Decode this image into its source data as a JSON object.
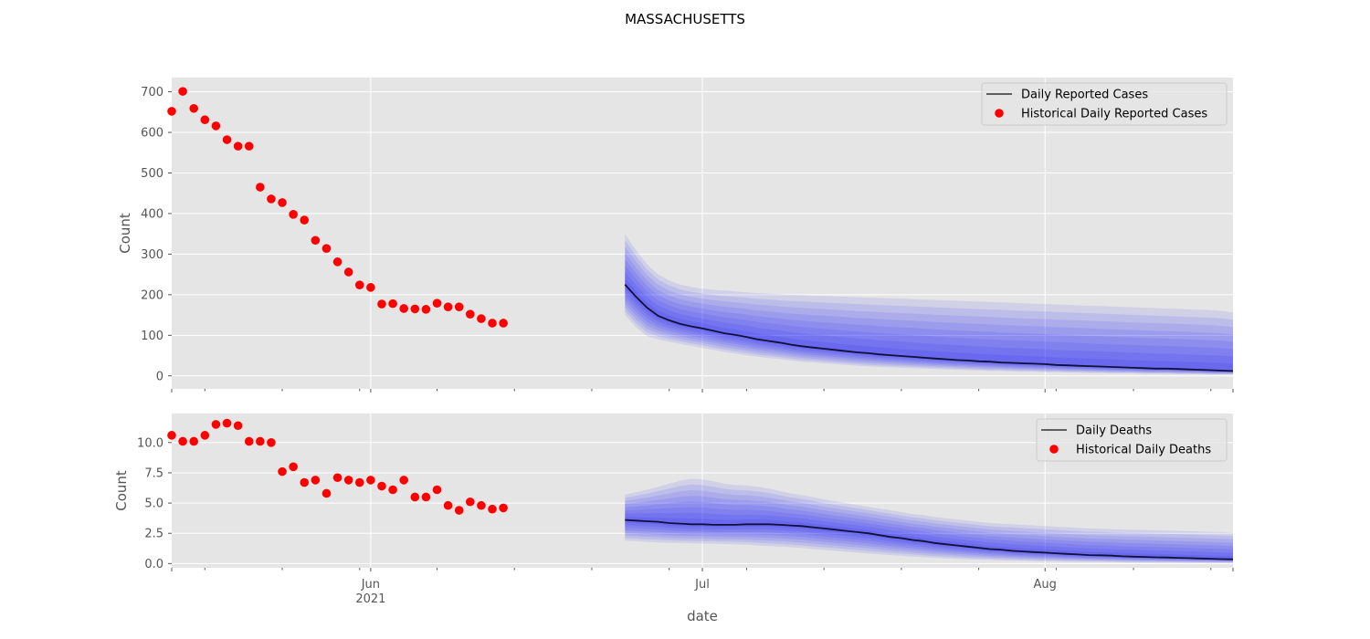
{
  "figure": {
    "title": "MASSACHUSETTS",
    "xlabel": "date"
  },
  "chart_data": [
    {
      "type": "line",
      "panel": "top",
      "ylabel": "Count",
      "ylim": [
        -32,
        735
      ],
      "yticks": [
        0,
        100,
        200,
        300,
        400,
        500,
        600,
        700
      ],
      "ytick_labels": [
        "0",
        "100",
        "200",
        "300",
        "400",
        "500",
        "600",
        "700"
      ],
      "xlim": [
        "2021-05-14",
        "2021-08-18"
      ],
      "grid": true,
      "legend_position": "top-right",
      "legend": {
        "line": "Daily Reported Cases",
        "scatter": "Historical Daily Reported Cases"
      },
      "historical": {
        "x": [
          "2021-05-14",
          "2021-05-15",
          "2021-05-16",
          "2021-05-17",
          "2021-05-18",
          "2021-05-19",
          "2021-05-20",
          "2021-05-21",
          "2021-05-22",
          "2021-05-23",
          "2021-05-24",
          "2021-05-25",
          "2021-05-26",
          "2021-05-27",
          "2021-05-28",
          "2021-05-29",
          "2021-05-30",
          "2021-05-31",
          "2021-06-01",
          "2021-06-02",
          "2021-06-03",
          "2021-06-04",
          "2021-06-05",
          "2021-06-06",
          "2021-06-07",
          "2021-06-08",
          "2021-06-09",
          "2021-06-10",
          "2021-06-11",
          "2021-06-12",
          "2021-06-13"
        ],
        "y": [
          652,
          701,
          659,
          631,
          616,
          582,
          566,
          566,
          465,
          436,
          427,
          398,
          384,
          334,
          314,
          281,
          256,
          224,
          218,
          177,
          178,
          166,
          165,
          164,
          179,
          170,
          170,
          152,
          141,
          130,
          130
        ]
      },
      "forecast": {
        "x": [
          "2021-06-24",
          "2021-06-25",
          "2021-06-26",
          "2021-06-27",
          "2021-06-28",
          "2021-06-29",
          "2021-06-30",
          "2021-07-01",
          "2021-07-02",
          "2021-07-03",
          "2021-07-04",
          "2021-07-05",
          "2021-07-06",
          "2021-07-07",
          "2021-07-08",
          "2021-07-09",
          "2021-07-10",
          "2021-07-11",
          "2021-07-12",
          "2021-07-13",
          "2021-07-14",
          "2021-07-15",
          "2021-07-16",
          "2021-07-17",
          "2021-07-18",
          "2021-07-19",
          "2021-07-20",
          "2021-07-21",
          "2021-07-22",
          "2021-07-23",
          "2021-07-24",
          "2021-07-25",
          "2021-07-26",
          "2021-07-27",
          "2021-07-28",
          "2021-07-29",
          "2021-07-30",
          "2021-07-31",
          "2021-08-01",
          "2021-08-02",
          "2021-08-03",
          "2021-08-04",
          "2021-08-05",
          "2021-08-06",
          "2021-08-07",
          "2021-08-08",
          "2021-08-09",
          "2021-08-10",
          "2021-08-11",
          "2021-08-12",
          "2021-08-13",
          "2021-08-14",
          "2021-08-15",
          "2021-08-16",
          "2021-08-17",
          "2021-08-18"
        ],
        "median": [
          225,
          195,
          168,
          148,
          137,
          128,
          122,
          117,
          111,
          105,
          101,
          96,
          90,
          86,
          82,
          77,
          73,
          70,
          67,
          64,
          61,
          58,
          56,
          53,
          51,
          49,
          47,
          45,
          43,
          41,
          39,
          38,
          36,
          35,
          33,
          32,
          31,
          30,
          29,
          27,
          26,
          25,
          24,
          23,
          22,
          21,
          20,
          19,
          18,
          18,
          17,
          16,
          15,
          14,
          13,
          12
        ],
        "upper": [
          350,
          310,
          275,
          250,
          235,
          225,
          219,
          215,
          212,
          210,
          208,
          206,
          204,
          203,
          201,
          200,
          199,
          198,
          197,
          196,
          195,
          194,
          193,
          192,
          191,
          190,
          189,
          188,
          187,
          186,
          185,
          184,
          183,
          182,
          181,
          180,
          179,
          178,
          177,
          176,
          175,
          174,
          173,
          172,
          171,
          170,
          169,
          168,
          167,
          166,
          165,
          164,
          163,
          162,
          160,
          156
        ],
        "lower": [
          150,
          120,
          98,
          90,
          84,
          79,
          74,
          69,
          64,
          59,
          55,
          51,
          47,
          44,
          41,
          38,
          35,
          33,
          31,
          29,
          27,
          25,
          23,
          22,
          21,
          20,
          19,
          18,
          17,
          16,
          15,
          14,
          13,
          12,
          12,
          11,
          10,
          10,
          9,
          9,
          8,
          8,
          7,
          7,
          6,
          6,
          6,
          5,
          5,
          5,
          4,
          4,
          4,
          3,
          3,
          3
        ]
      }
    },
    {
      "type": "line",
      "panel": "bottom",
      "ylabel": "Count",
      "ylim": [
        -0.35,
        12.4
      ],
      "yticks": [
        0,
        2.5,
        5,
        7.5,
        10
      ],
      "ytick_labels": [
        "0.0",
        "2.5",
        "5.0",
        "7.5",
        "10.0"
      ],
      "xlim": [
        "2021-05-14",
        "2021-08-18"
      ],
      "grid": true,
      "legend_position": "top-right",
      "legend": {
        "line": "Daily Deaths",
        "scatter": "Historical Daily Deaths"
      },
      "historical": {
        "x": [
          "2021-05-14",
          "2021-05-15",
          "2021-05-16",
          "2021-05-17",
          "2021-05-18",
          "2021-05-19",
          "2021-05-20",
          "2021-05-21",
          "2021-05-22",
          "2021-05-23",
          "2021-05-24",
          "2021-05-25",
          "2021-05-26",
          "2021-05-27",
          "2021-05-28",
          "2021-05-29",
          "2021-05-30",
          "2021-05-31",
          "2021-06-01",
          "2021-06-02",
          "2021-06-03",
          "2021-06-04",
          "2021-06-05",
          "2021-06-06",
          "2021-06-07",
          "2021-06-08",
          "2021-06-09",
          "2021-06-10",
          "2021-06-11",
          "2021-06-12",
          "2021-06-13"
        ],
        "y": [
          10.6,
          10.1,
          10.1,
          10.6,
          11.5,
          11.6,
          11.4,
          10.1,
          10.1,
          10.0,
          7.6,
          8.0,
          6.7,
          6.9,
          5.8,
          7.1,
          6.9,
          6.7,
          6.9,
          6.4,
          6.1,
          6.9,
          5.5,
          5.5,
          6.1,
          4.8,
          4.4,
          5.1,
          4.8,
          4.5,
          4.6
        ]
      },
      "forecast": {
        "x": [
          "2021-06-24",
          "2021-06-25",
          "2021-06-26",
          "2021-06-27",
          "2021-06-28",
          "2021-06-29",
          "2021-06-30",
          "2021-07-01",
          "2021-07-02",
          "2021-07-03",
          "2021-07-04",
          "2021-07-05",
          "2021-07-06",
          "2021-07-07",
          "2021-07-08",
          "2021-07-09",
          "2021-07-10",
          "2021-07-11",
          "2021-07-12",
          "2021-07-13",
          "2021-07-14",
          "2021-07-15",
          "2021-07-16",
          "2021-07-17",
          "2021-07-18",
          "2021-07-19",
          "2021-07-20",
          "2021-07-21",
          "2021-07-22",
          "2021-07-23",
          "2021-07-24",
          "2021-07-25",
          "2021-07-26",
          "2021-07-27",
          "2021-07-28",
          "2021-07-29",
          "2021-07-30",
          "2021-07-31",
          "2021-08-01",
          "2021-08-02",
          "2021-08-03",
          "2021-08-04",
          "2021-08-05",
          "2021-08-06",
          "2021-08-07",
          "2021-08-08",
          "2021-08-09",
          "2021-08-10",
          "2021-08-11",
          "2021-08-12",
          "2021-08-13",
          "2021-08-14",
          "2021-08-15",
          "2021-08-16",
          "2021-08-17",
          "2021-08-18"
        ],
        "median": [
          3.6,
          3.55,
          3.5,
          3.45,
          3.35,
          3.3,
          3.25,
          3.25,
          3.2,
          3.2,
          3.2,
          3.25,
          3.25,
          3.25,
          3.2,
          3.15,
          3.1,
          3.0,
          2.9,
          2.8,
          2.7,
          2.6,
          2.5,
          2.35,
          2.2,
          2.1,
          1.95,
          1.85,
          1.7,
          1.6,
          1.5,
          1.4,
          1.3,
          1.2,
          1.15,
          1.05,
          1.0,
          0.95,
          0.9,
          0.85,
          0.8,
          0.75,
          0.7,
          0.68,
          0.65,
          0.6,
          0.57,
          0.55,
          0.52,
          0.5,
          0.47,
          0.45,
          0.42,
          0.4,
          0.37,
          0.35
        ],
        "upper": [
          5.7,
          5.9,
          6.1,
          6.35,
          6.6,
          6.85,
          7.0,
          6.95,
          6.8,
          6.6,
          6.5,
          6.45,
          6.35,
          6.2,
          6.0,
          5.8,
          5.65,
          5.5,
          5.3,
          5.15,
          5.0,
          4.85,
          4.7,
          4.55,
          4.4,
          4.25,
          4.1,
          4.0,
          3.85,
          3.75,
          3.65,
          3.55,
          3.45,
          3.35,
          3.3,
          3.25,
          3.2,
          3.15,
          3.1,
          3.05,
          3.0,
          2.95,
          2.9,
          2.88,
          2.85,
          2.82,
          2.8,
          2.78,
          2.75,
          2.73,
          2.7,
          2.68,
          2.65,
          2.62,
          2.6,
          2.55
        ],
        "lower": [
          1.9,
          1.85,
          1.8,
          1.75,
          1.72,
          1.7,
          1.68,
          1.66,
          1.64,
          1.62,
          1.6,
          1.55,
          1.5,
          1.45,
          1.4,
          1.35,
          1.28,
          1.2,
          1.12,
          1.05,
          0.98,
          0.9,
          0.83,
          0.77,
          0.7,
          0.64,
          0.58,
          0.52,
          0.47,
          0.43,
          0.39,
          0.35,
          0.32,
          0.29,
          0.26,
          0.24,
          0.22,
          0.2,
          0.18,
          0.17,
          0.15,
          0.14,
          0.13,
          0.12,
          0.11,
          0.1,
          0.09,
          0.08,
          0.08,
          0.07,
          0.07,
          0.06,
          0.06,
          0.05,
          0.05,
          0.05
        ]
      }
    }
  ],
  "xaxis": {
    "major_ticks": [
      {
        "date": "2021-06-01",
        "label": "Jun",
        "sublabel": "2021"
      },
      {
        "date": "2021-07-01",
        "label": "Jul",
        "sublabel": ""
      },
      {
        "date": "2021-08-01",
        "label": "Aug",
        "sublabel": ""
      }
    ],
    "minor_tick_dates": [
      "2021-05-17",
      "2021-05-24",
      "2021-05-31",
      "2021-06-07",
      "2021-06-14",
      "2021-06-21",
      "2021-06-28",
      "2021-07-05",
      "2021-07-12",
      "2021-07-19",
      "2021-07-26",
      "2021-08-02",
      "2021-08-09",
      "2021-08-16"
    ]
  },
  "colors": {
    "axes_bg": "#e5e5e5",
    "grid": "#ffffff",
    "tick": "#555555",
    "point": "#ff0000",
    "band": "#0000ff",
    "median": "#111133",
    "legend_line": "#333333"
  }
}
